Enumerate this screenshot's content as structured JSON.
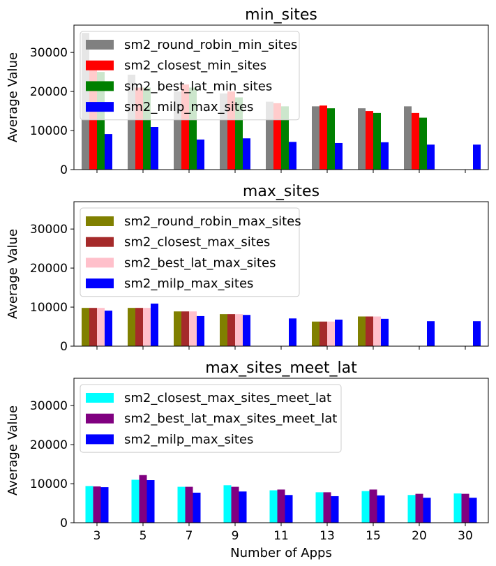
{
  "chart_data": [
    {
      "type": "bar",
      "title": "min_sites",
      "ylabel": "Average Value",
      "xlabel": "",
      "categories": [
        "3",
        "5",
        "7",
        "9",
        "11",
        "13",
        "15",
        "20",
        "30"
      ],
      "ylim": [
        0,
        37000
      ],
      "yticks": [
        0,
        10000,
        20000,
        30000
      ],
      "show_xtick_labels": false,
      "legend": "upper-left",
      "series": [
        {
          "name": "sm2_round_robin_min_sites",
          "color": "#808080",
          "values": [
            35000,
            24300,
            20000,
            19500,
            17400,
            16200,
            15700,
            16200,
            null
          ]
        },
        {
          "name": "sm2_closest_min_sites",
          "color": "#ff0000",
          "values": [
            25500,
            21000,
            21800,
            20000,
            17000,
            16400,
            15000,
            14500,
            null
          ]
        },
        {
          "name": "sm2_best_lat_min_sites",
          "color": "#008000",
          "values": [
            25000,
            21000,
            21000,
            18500,
            16200,
            15700,
            14500,
            13300,
            null
          ]
        },
        {
          "name": "sm2_milp_max_sites",
          "color": "#0000ff",
          "values": [
            9100,
            10900,
            7700,
            8000,
            7100,
            6800,
            7000,
            6400,
            6400
          ]
        }
      ]
    },
    {
      "type": "bar",
      "title": "max_sites",
      "ylabel": "Average Value",
      "xlabel": "",
      "categories": [
        "3",
        "5",
        "7",
        "9",
        "11",
        "13",
        "15",
        "20",
        "30"
      ],
      "ylim": [
        0,
        37000
      ],
      "yticks": [
        0,
        10000,
        20000,
        30000
      ],
      "show_xtick_labels": false,
      "legend": "upper-left",
      "series": [
        {
          "name": "sm2_round_robin_max_sites",
          "color": "#808000",
          "values": [
            9800,
            9800,
            8900,
            8200,
            null,
            6300,
            7600,
            null,
            null
          ]
        },
        {
          "name": "sm2_closest_max_sites",
          "color": "#a52a2a",
          "values": [
            9800,
            9800,
            8900,
            8200,
            null,
            6300,
            7600,
            null,
            null
          ]
        },
        {
          "name": "sm2_best_lat_max_sites",
          "color": "#ffc0cb",
          "values": [
            9800,
            9800,
            8900,
            8200,
            null,
            6300,
            7600,
            null,
            null
          ]
        },
        {
          "name": "sm2_milp_max_sites",
          "color": "#0000ff",
          "values": [
            9100,
            10900,
            7700,
            8000,
            7100,
            6800,
            7000,
            6400,
            6400
          ]
        }
      ]
    },
    {
      "type": "bar",
      "title": "max_sites_meet_lat",
      "ylabel": "Average Value",
      "xlabel": "Number of Apps",
      "categories": [
        "3",
        "5",
        "7",
        "9",
        "11",
        "13",
        "15",
        "20",
        "30"
      ],
      "ylim": [
        0,
        37000
      ],
      "yticks": [
        0,
        10000,
        20000,
        30000
      ],
      "show_xtick_labels": true,
      "legend": "upper-left",
      "series": [
        {
          "name": "sm2_closest_max_sites_meet_lat",
          "color": "#00ffff",
          "values": [
            9400,
            11000,
            9200,
            9600,
            8300,
            7800,
            8100,
            7100,
            7500
          ]
        },
        {
          "name": "sm2_best_lat_max_sites_meet_lat",
          "color": "#800080",
          "values": [
            9300,
            12200,
            9200,
            9200,
            8500,
            7800,
            8500,
            7400,
            7400
          ]
        },
        {
          "name": "sm2_milp_max_sites",
          "color": "#0000ff",
          "values": [
            9100,
            10900,
            7700,
            8000,
            7100,
            6800,
            7000,
            6400,
            6400
          ]
        }
      ]
    }
  ]
}
